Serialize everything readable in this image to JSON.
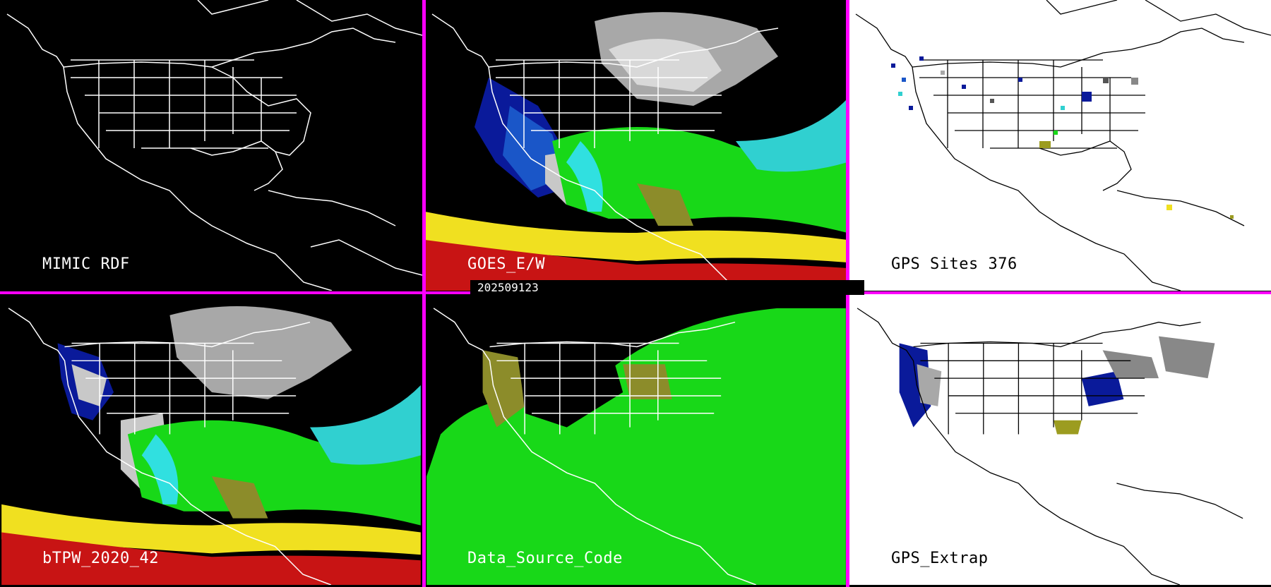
{
  "timestamp": "202509123",
  "colors": {
    "divider": "#ff00ff",
    "panel_black": "#000000",
    "panel_white": "#ffffff"
  },
  "panels": [
    {
      "label": "MIMIC RDF",
      "background": "black",
      "content": "outline-map"
    },
    {
      "label": "GOES_E/W",
      "background": "black",
      "content": "tpw-satellite"
    },
    {
      "label": "GPS Sites    376",
      "background": "white",
      "content": "gps-sites"
    },
    {
      "label": "bTPW_2020_42",
      "background": "black",
      "content": "tpw-blended"
    },
    {
      "label": "Data_Source_Code",
      "background": "black",
      "content": "source-code"
    },
    {
      "label": "GPS_Extrap",
      "background": "white",
      "content": "gps-extrap"
    }
  ]
}
